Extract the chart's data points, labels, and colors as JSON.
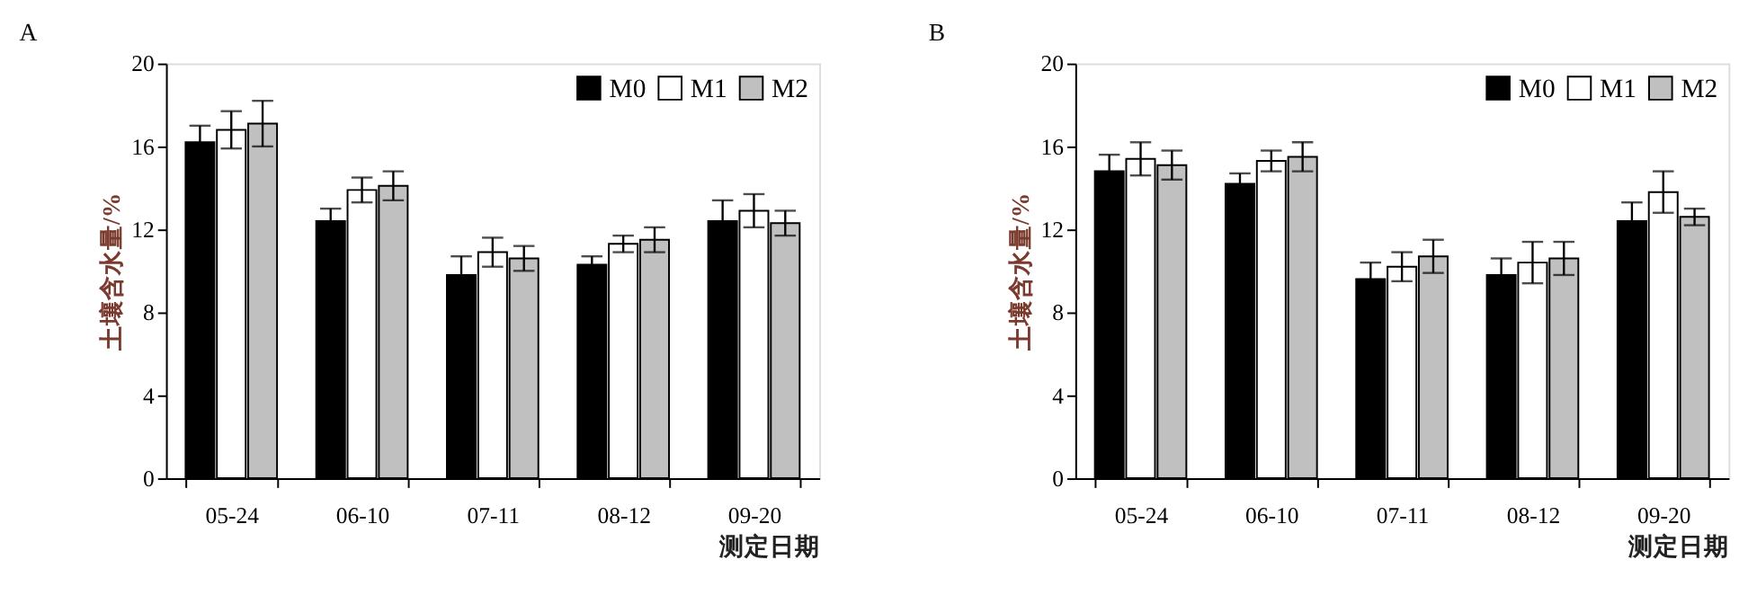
{
  "chart_data": [
    {
      "type": "bar",
      "title": "A",
      "xlabel": "测定日期",
      "ylabel": "土壤含水量/%",
      "categories": [
        "05-24",
        "06-10",
        "07-11",
        "08-12",
        "09-20"
      ],
      "ylim": [
        0,
        20
      ],
      "yticks": [
        0,
        4,
        8,
        12,
        16,
        20
      ],
      "grid": false,
      "legend": "top right",
      "series": [
        {
          "name": "M0",
          "color": "#000000",
          "values": [
            16.2,
            12.4,
            9.8,
            10.3,
            12.4
          ],
          "errors": [
            0.8,
            0.6,
            0.9,
            0.4,
            1.0
          ]
        },
        {
          "name": "M1",
          "color": "#ffffff",
          "values": [
            16.8,
            13.9,
            10.9,
            11.3,
            12.9
          ],
          "errors": [
            0.9,
            0.6,
            0.7,
            0.4,
            0.8
          ]
        },
        {
          "name": "M2",
          "color": "#c0c0c0",
          "values": [
            17.1,
            14.1,
            10.6,
            11.5,
            12.3
          ],
          "errors": [
            1.1,
            0.7,
            0.6,
            0.6,
            0.6
          ]
        }
      ]
    },
    {
      "type": "bar",
      "title": "B",
      "xlabel": "测定日期",
      "ylabel": "土壤含水量/%",
      "categories": [
        "05-24",
        "06-10",
        "07-11",
        "08-12",
        "09-20"
      ],
      "ylim": [
        0,
        20
      ],
      "yticks": [
        0,
        4,
        8,
        12,
        16,
        20
      ],
      "grid": false,
      "legend": "top right",
      "series": [
        {
          "name": "M0",
          "color": "#000000",
          "values": [
            14.8,
            14.2,
            9.6,
            9.8,
            12.4
          ],
          "errors": [
            0.8,
            0.5,
            0.8,
            0.8,
            0.9
          ]
        },
        {
          "name": "M1",
          "color": "#ffffff",
          "values": [
            15.4,
            15.3,
            10.2,
            10.4,
            13.8
          ],
          "errors": [
            0.8,
            0.5,
            0.7,
            1.0,
            1.0
          ]
        },
        {
          "name": "M2",
          "color": "#c0c0c0",
          "values": [
            15.1,
            15.5,
            10.7,
            10.6,
            12.6
          ],
          "errors": [
            0.7,
            0.7,
            0.8,
            0.8,
            0.4
          ]
        }
      ]
    }
  ]
}
